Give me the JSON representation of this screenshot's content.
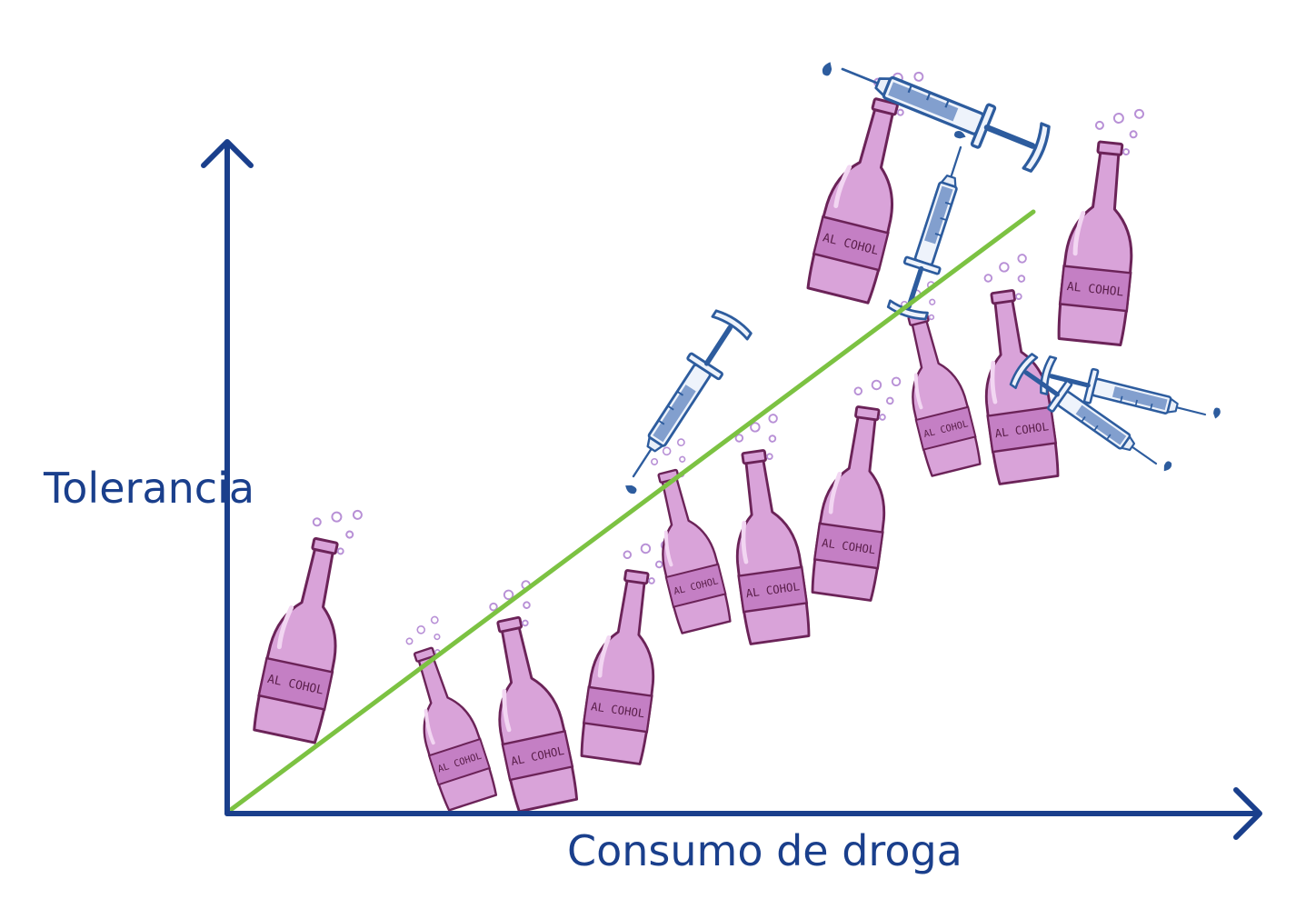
{
  "chart_data": {
    "type": "line",
    "title": "",
    "xlabel": "Consumo de droga",
    "ylabel": "Tolerancia",
    "x": [
      0,
      1
    ],
    "series": [
      {
        "values": [
          0,
          1
        ]
      }
    ],
    "xlim": [
      0,
      1
    ],
    "ylim": [
      0,
      1
    ],
    "grid": false,
    "legend": "none",
    "colors": {
      "axis": "#1a3f8c",
      "line": "#7cc242",
      "bottle": "#d9a3d9",
      "bottle_outline": "#6b2358",
      "syringe": "#2d5c9e"
    }
  },
  "illustrations": {
    "bottle_text": "AL COHOL",
    "bottles": [
      {
        "icon": "alcohol-bottle-icon"
      },
      {
        "icon": "alcohol-bottle-icon"
      },
      {
        "icon": "alcohol-bottle-icon"
      },
      {
        "icon": "alcohol-bottle-icon"
      },
      {
        "icon": "alcohol-bottle-icon"
      },
      {
        "icon": "alcohol-bottle-icon"
      },
      {
        "icon": "alcohol-bottle-icon"
      },
      {
        "icon": "alcohol-bottle-icon"
      },
      {
        "icon": "alcohol-bottle-icon"
      },
      {
        "icon": "alcohol-bottle-icon"
      },
      {
        "icon": "alcohol-bottle-icon"
      },
      {
        "icon": "alcohol-bottle-icon"
      }
    ],
    "syringes": [
      {
        "icon": "syringe-icon"
      },
      {
        "icon": "syringe-icon"
      },
      {
        "icon": "syringe-icon"
      },
      {
        "icon": "syringe-icon"
      },
      {
        "icon": "syringe-icon"
      }
    ]
  }
}
